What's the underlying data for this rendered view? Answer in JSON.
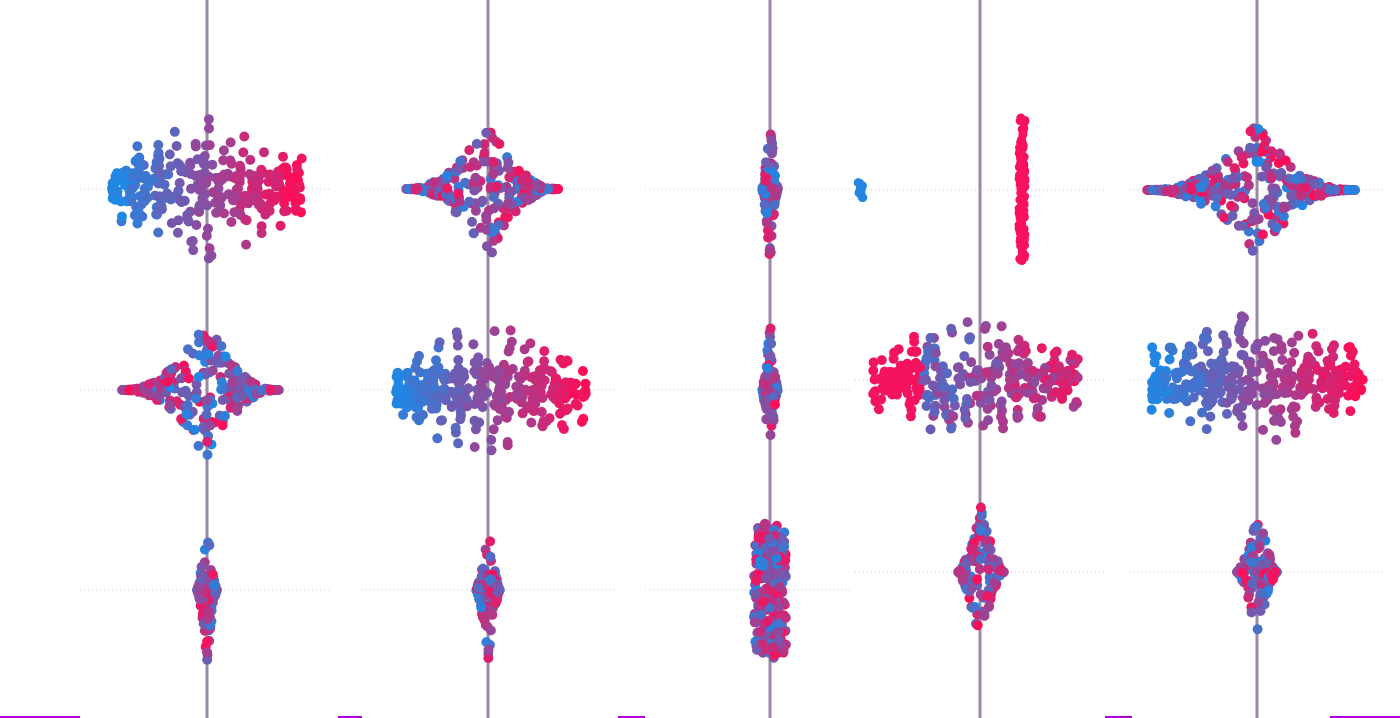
{
  "colors": {
    "low": "#1e88e5",
    "high": "#ff0d57",
    "zero_line": "#9b8aa6",
    "row_guide": "#cccccc",
    "bottom_axis": "#b000d8"
  },
  "chart_data": {
    "type": "scatter",
    "subtype": "beeswarm",
    "title": "",
    "xlabel": "",
    "ylabel": "",
    "grid": false,
    "legend": "none",
    "rows_per_panel": 3,
    "panels": [
      {
        "rows": [
          {
            "shape": "gradient",
            "w_left": 95,
            "w_right": 95,
            "h": 75,
            "dots": 340
          },
          {
            "shape": "star",
            "w_left": 85,
            "w_right": 72,
            "h": 72,
            "dots": 300
          },
          {
            "shape": "needle",
            "w_left": 10,
            "w_right": 10,
            "h": 72,
            "dots": 120
          }
        ]
      },
      {
        "rows": [
          {
            "shape": "star",
            "w_left": 83,
            "w_right": 72,
            "h": 72,
            "dots": 300
          },
          {
            "shape": "gradient",
            "w_left": 92,
            "w_right": 98,
            "h": 72,
            "dots": 360
          },
          {
            "shape": "needle",
            "w_left": 12,
            "w_right": 12,
            "h": 72,
            "dots": 120
          }
        ]
      },
      {
        "rows": [
          {
            "shape": "needle",
            "w_left": 8,
            "w_right": 8,
            "h": 72,
            "dots": 100
          },
          {
            "shape": "needle",
            "w_left": 8,
            "w_right": 8,
            "h": 72,
            "dots": 100
          },
          {
            "shape": "block",
            "w_left": 16,
            "w_right": 16,
            "h": 72,
            "dots": 260
          }
        ]
      },
      {
        "rows": [
          {
            "shape": "split",
            "w_left": 122,
            "w_right": 42,
            "h": 72,
            "dots": 110
          },
          {
            "shape": "reverse",
            "w_left": 108,
            "w_right": 98,
            "h": 68,
            "dots": 320
          },
          {
            "shape": "needle",
            "w_left": 22,
            "w_right": 24,
            "h": 70,
            "dots": 140
          }
        ]
      },
      {
        "rows": [
          {
            "shape": "star",
            "w_left": 110,
            "w_right": 98,
            "h": 68,
            "dots": 320
          },
          {
            "shape": "gradient",
            "w_left": 106,
            "w_right": 106,
            "h": 72,
            "dots": 360
          },
          {
            "shape": "needle",
            "w_left": 20,
            "w_right": 20,
            "h": 70,
            "dots": 140
          }
        ]
      }
    ]
  }
}
